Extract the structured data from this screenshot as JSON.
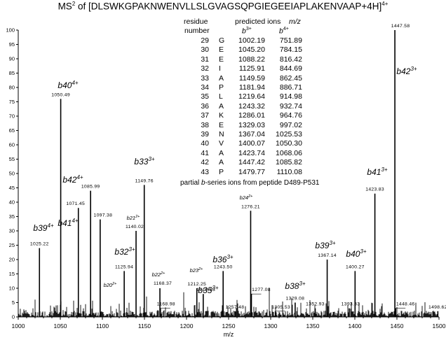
{
  "title": {
    "prefix": "MS",
    "sup1": "2",
    "middle": " of [DLSWKGPAKNWENVLLSLGVAGSQPGIEGEEIAPLAKENVAAP+4H]",
    "sup2": "4+"
  },
  "table": {
    "headers": {
      "residue": "residue",
      "number": "number",
      "predicted": "predicted ions",
      "mz": "m/z",
      "b3": "b",
      "b3_sup": "3+",
      "b4": "b",
      "b4_sup": "4+"
    },
    "rows": [
      {
        "num": "29",
        "aa": "G",
        "b3": "1002.19",
        "b4": "751.89"
      },
      {
        "num": "30",
        "aa": "E",
        "b3": "1045.20",
        "b4": "784.15"
      },
      {
        "num": "31",
        "aa": "E",
        "b3": "1088.22",
        "b4": "816.42"
      },
      {
        "num": "32",
        "aa": "I",
        "b3": "1125.91",
        "b4": "844.69"
      },
      {
        "num": "33",
        "aa": "A",
        "b3": "1149.59",
        "b4": "862.45"
      },
      {
        "num": "34",
        "aa": "P",
        "b3": "1181.94",
        "b4": "886.71"
      },
      {
        "num": "35",
        "aa": "L",
        "b3": "1219.64",
        "b4": "914.98"
      },
      {
        "num": "36",
        "aa": "A",
        "b3": "1243.32",
        "b4": "932.74"
      },
      {
        "num": "37",
        "aa": "K",
        "b3": "1286.01",
        "b4": "964.76"
      },
      {
        "num": "38",
        "aa": "E",
        "b3": "1329.03",
        "b4": "997.02"
      },
      {
        "num": "39",
        "aa": "N",
        "b3": "1367.04",
        "b4": "1025.53"
      },
      {
        "num": "40",
        "aa": "V",
        "b3": "1400.07",
        "b4": "1050.30"
      },
      {
        "num": "41",
        "aa": "A",
        "b3": "1423.74",
        "b4": "1068.06"
      },
      {
        "num": "42",
        "aa": "A",
        "b3": "1447.42",
        "b4": "1085.82"
      },
      {
        "num": "43",
        "aa": "P",
        "b3": "1479.77",
        "b4": "1110.08"
      }
    ],
    "note_pre": "partial ",
    "note_b": "b",
    "note_post": "-series ions from peptide D489-P531"
  },
  "chart_data": {
    "type": "bar",
    "xlabel": "m/z",
    "ylabel": "",
    "xlim": [
      1000,
      1500
    ],
    "ylim": [
      0,
      100
    ],
    "xticks": [
      1000,
      1050,
      1100,
      1150,
      1200,
      1250,
      1300,
      1350,
      1400,
      1450,
      1500
    ],
    "xtick_labels": [
      "1000",
      "1050",
      "1100",
      "1150",
      "1200",
      "1250",
      "1300",
      "1350",
      "1400",
      "1450",
      "1500"
    ],
    "yticks": [
      0,
      5,
      10,
      15,
      20,
      25,
      30,
      35,
      40,
      45,
      50,
      55,
      60,
      65,
      70,
      75,
      80,
      85,
      90,
      95,
      100
    ],
    "ytick_labels": [
      "0",
      "5",
      "10",
      "15",
      "20",
      "25",
      "30",
      "35",
      "40",
      "45",
      "50",
      "55",
      "60",
      "65",
      "70",
      "75",
      "80",
      "85",
      "90",
      "95",
      "100"
    ],
    "labeled_peaks": [
      {
        "mz": 1025.22,
        "label": "1025.22",
        "intensity": 24
      },
      {
        "mz": 1050.49,
        "label": "1050.49",
        "intensity": 76
      },
      {
        "mz": 1071.45,
        "label": "1071.45",
        "intensity": 38
      },
      {
        "mz": 1085.99,
        "label": "1085.99",
        "intensity": 44
      },
      {
        "mz": 1097.38,
        "label": "1097.38",
        "intensity": 34
      },
      {
        "mz": 1125.94,
        "label": "1125.94",
        "intensity": 16
      },
      {
        "mz": 1140.02,
        "label": "1140.02",
        "intensity": 30
      },
      {
        "mz": 1149.76,
        "label": "1149.76",
        "intensity": 46
      },
      {
        "mz": 1168.37,
        "label": "1168.37",
        "intensity": 10
      },
      {
        "mz": 1168.98,
        "label": "1168.98",
        "intensity": 3
      },
      {
        "mz": 1212.25,
        "label": "1212.25",
        "intensity": 10
      },
      {
        "mz": 1219.83,
        "label": "1219.83",
        "intensity": 8
      },
      {
        "mz": 1243.5,
        "label": "1243.50",
        "intensity": 16
      },
      {
        "mz": 1257.48,
        "label": "1257.48",
        "intensity": 2
      },
      {
        "mz": 1276.21,
        "label": "1276.21",
        "intensity": 37
      },
      {
        "mz": 1277.08,
        "label": "1277.08",
        "intensity": 8
      },
      {
        "mz": 1305.53,
        "label": "1305.53",
        "intensity": 2
      },
      {
        "mz": 1329.08,
        "label": "1329.08",
        "intensity": 5
      },
      {
        "mz": 1352.93,
        "label": "1352.93",
        "intensity": 3
      },
      {
        "mz": 1367.14,
        "label": "1367.14",
        "intensity": 20
      },
      {
        "mz": 1393.33,
        "label": "1393.33",
        "intensity": 3
      },
      {
        "mz": 1400.27,
        "label": "1400.27",
        "intensity": 16
      },
      {
        "mz": 1423.83,
        "label": "1423.83",
        "intensity": 43
      },
      {
        "mz": 1447.58,
        "label": "1447.58",
        "intensity": 100
      },
      {
        "mz": 1448.46,
        "label": "1448.46",
        "intensity": 3
      },
      {
        "mz": 1498.62,
        "label": "1498.62",
        "intensity": 2
      }
    ],
    "ion_annotations": [
      {
        "base": "b39",
        "sup": "4+",
        "mz": 1025.22,
        "size": "large"
      },
      {
        "base": "b40",
        "sup": "4+",
        "mz": 1050.49,
        "size": "large"
      },
      {
        "base": "b41",
        "sup": "4+",
        "mz": 1068.06,
        "size": "large"
      },
      {
        "base": "b42",
        "sup": "4+",
        "mz": 1085.99,
        "size": "large"
      },
      {
        "base": "b20",
        "sup": "2+",
        "mz": 1104.5,
        "size": "small"
      },
      {
        "base": "b21",
        "sup": "2+",
        "mz": 1140.02,
        "size": "small"
      },
      {
        "base": "b22",
        "sup": "2+",
        "mz": 1168.37,
        "size": "small"
      },
      {
        "base": "b32",
        "sup": "3+",
        "mz": 1125.94,
        "size": "large"
      },
      {
        "base": "b33",
        "sup": "3+",
        "mz": 1149.76,
        "size": "large"
      },
      {
        "base": "b23",
        "sup": "2+",
        "mz": 1212.25,
        "size": "small"
      },
      {
        "base": "b35",
        "sup": "3+",
        "mz": 1219.83,
        "size": "large"
      },
      {
        "base": "b36",
        "sup": "3+",
        "mz": 1243.5,
        "size": "large"
      },
      {
        "base": "b24",
        "sup": "2+",
        "mz": 1276.21,
        "size": "small"
      },
      {
        "base": "b38",
        "sup": "3+",
        "mz": 1329.08,
        "size": "large"
      },
      {
        "base": "b39",
        "sup": "3+",
        "mz": 1367.14,
        "size": "large"
      },
      {
        "base": "b40",
        "sup": "3+",
        "mz": 1400.27,
        "size": "large"
      },
      {
        "base": "b41",
        "sup": "3+",
        "mz": 1423.83,
        "size": "large"
      },
      {
        "base": "b42",
        "sup": "3+",
        "mz": 1447.58,
        "size": "large"
      }
    ]
  }
}
